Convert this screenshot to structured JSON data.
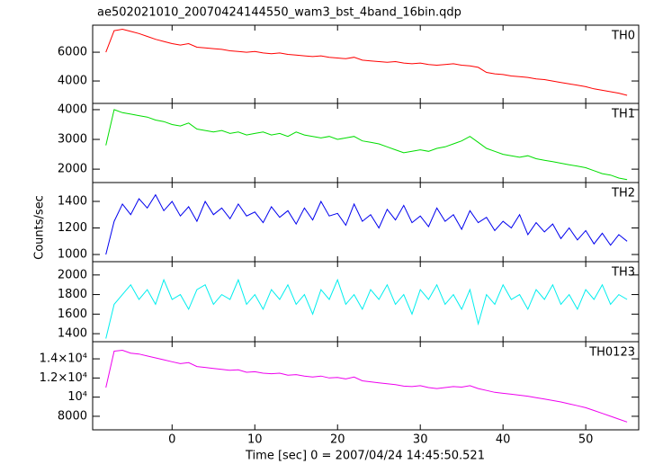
{
  "chart_data": {
    "type": "line",
    "title": "ae502021010_20070424144550_wam3_bst_4band_16bin.qdp",
    "ylabel": "Counts/sec",
    "xlabel": "Time [sec] 0 = 2007/04/24 14:45:50.521",
    "xlim": [
      -9.6,
      56.4
    ],
    "xticks": [
      0,
      10,
      20,
      30,
      40,
      50
    ],
    "x": [
      -8,
      -7,
      -6,
      -5,
      -4,
      -3,
      -2,
      -1,
      0,
      1,
      2,
      3,
      4,
      5,
      6,
      7,
      8,
      9,
      10,
      11,
      12,
      13,
      14,
      15,
      16,
      17,
      18,
      19,
      20,
      21,
      22,
      23,
      24,
      25,
      26,
      27,
      28,
      29,
      30,
      31,
      32,
      33,
      34,
      35,
      36,
      37,
      38,
      39,
      40,
      41,
      42,
      43,
      44,
      45,
      46,
      47,
      48,
      49,
      50,
      51,
      52,
      53,
      54,
      55
    ],
    "panels": [
      {
        "name": "TH0",
        "color": "#ff0000",
        "ylim": [
          2440,
          7880
        ],
        "yticks": [
          4000,
          6000
        ],
        "values": [
          6000,
          7500,
          7600,
          7450,
          7300,
          7100,
          6900,
          6750,
          6600,
          6500,
          6600,
          6350,
          6300,
          6250,
          6200,
          6100,
          6050,
          6000,
          6050,
          5950,
          5900,
          5950,
          5850,
          5800,
          5750,
          5700,
          5750,
          5650,
          5600,
          5550,
          5650,
          5450,
          5400,
          5350,
          5300,
          5350,
          5250,
          5200,
          5250,
          5150,
          5100,
          5150,
          5200,
          5100,
          5050,
          4950,
          4600,
          4500,
          4450,
          4350,
          4300,
          4250,
          4150,
          4100,
          4000,
          3900,
          3800,
          3700,
          3600,
          3450,
          3350,
          3250,
          3150,
          3000
        ]
      },
      {
        "name": "TH1",
        "color": "#00dd00",
        "ylim": [
          1550,
          4210
        ],
        "yticks": [
          2000,
          3000,
          4000
        ],
        "values": [
          2800,
          4000,
          3900,
          3850,
          3800,
          3750,
          3650,
          3600,
          3500,
          3450,
          3550,
          3350,
          3300,
          3250,
          3300,
          3200,
          3250,
          3150,
          3200,
          3250,
          3150,
          3200,
          3100,
          3250,
          3150,
          3100,
          3050,
          3100,
          3000,
          3050,
          3100,
          2950,
          2900,
          2850,
          2750,
          2650,
          2550,
          2600,
          2650,
          2600,
          2700,
          2750,
          2850,
          2950,
          3100,
          2900,
          2700,
          2600,
          2500,
          2450,
          2400,
          2450,
          2350,
          2300,
          2250,
          2200,
          2150,
          2100,
          2050,
          1950,
          1850,
          1800,
          1700,
          1650
        ]
      },
      {
        "name": "TH2",
        "color": "#0000ee",
        "ylim": [
          946,
          1542
        ],
        "yticks": [
          1000,
          1200,
          1400
        ],
        "values": [
          1000,
          1250,
          1380,
          1300,
          1420,
          1350,
          1450,
          1330,
          1400,
          1290,
          1360,
          1250,
          1400,
          1300,
          1350,
          1270,
          1380,
          1290,
          1320,
          1240,
          1360,
          1280,
          1330,
          1230,
          1350,
          1260,
          1400,
          1290,
          1310,
          1220,
          1380,
          1250,
          1300,
          1200,
          1340,
          1260,
          1370,
          1240,
          1290,
          1210,
          1350,
          1250,
          1300,
          1190,
          1330,
          1240,
          1280,
          1180,
          1250,
          1200,
          1300,
          1150,
          1240,
          1170,
          1230,
          1120,
          1200,
          1110,
          1180,
          1080,
          1160,
          1070,
          1150,
          1100
        ]
      },
      {
        "name": "TH3",
        "color": "#00eeee",
        "ylim": [
          1318,
          2136
        ],
        "yticks": [
          1400,
          1600,
          1800,
          2000
        ],
        "values": [
          1350,
          1700,
          1800,
          1900,
          1750,
          1850,
          1700,
          1950,
          1750,
          1800,
          1650,
          1850,
          1900,
          1700,
          1800,
          1750,
          1950,
          1700,
          1800,
          1650,
          1850,
          1750,
          1900,
          1700,
          1800,
          1600,
          1850,
          1750,
          1950,
          1700,
          1800,
          1650,
          1850,
          1750,
          1900,
          1700,
          1800,
          1600,
          1850,
          1750,
          1900,
          1700,
          1800,
          1650,
          1850,
          1500,
          1800,
          1700,
          1900,
          1750,
          1800,
          1650,
          1850,
          1750,
          1900,
          1700,
          1800,
          1650,
          1850,
          1750,
          1900,
          1700,
          1800,
          1750
        ]
      },
      {
        "name": "TH0123",
        "color": "#ee00ee",
        "ylim": [
          6585,
          15790
        ],
        "yticks": [
          8000,
          {
            "value": 10000,
            "label": "10⁴"
          },
          {
            "value": 12000,
            "label": "1.2×10⁴"
          },
          {
            "value": 14000,
            "label": "1.4×10⁴"
          }
        ],
        "values": [
          11000,
          14800,
          14900,
          14600,
          14500,
          14300,
          14100,
          13900,
          13700,
          13500,
          13600,
          13200,
          13100,
          13000,
          12900,
          12800,
          12850,
          12600,
          12650,
          12500,
          12450,
          12500,
          12300,
          12350,
          12200,
          12100,
          12200,
          12000,
          12050,
          11900,
          12100,
          11700,
          11600,
          11500,
          11400,
          11300,
          11150,
          11100,
          11200,
          11000,
          10900,
          11000,
          11100,
          11050,
          11200,
          10900,
          10700,
          10500,
          10400,
          10300,
          10200,
          10100,
          9950,
          9800,
          9650,
          9500,
          9300,
          9100,
          8900,
          8600,
          8300,
          8000,
          7700,
          7400
        ]
      }
    ]
  }
}
